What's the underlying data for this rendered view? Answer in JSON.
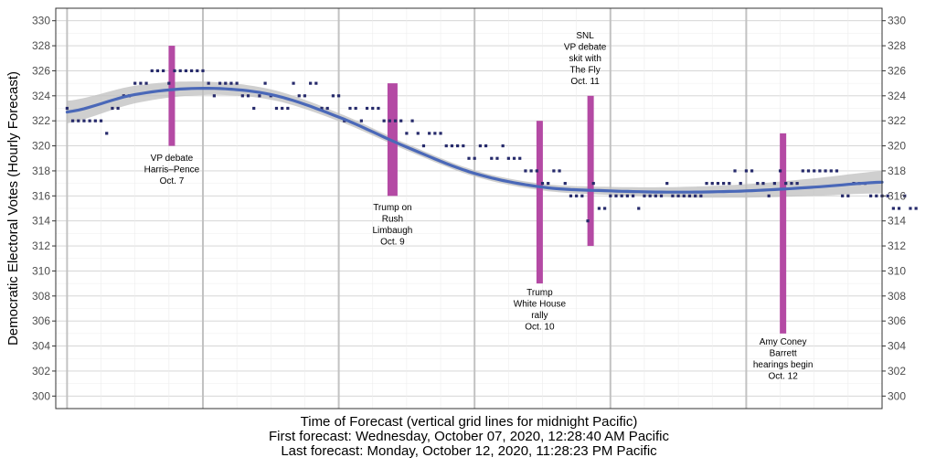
{
  "chart_data": {
    "type": "scatter",
    "ylabel": "Democratic Electoral Votes (Hourly Forecast)",
    "xlabel_lines": [
      "Time of Forecast (vertical grid lines for midnight Pacific)",
      "First forecast: Wednesday, October 07, 2020, 12:28:40 AM Pacific",
      "Last forecast: Monday, October 12, 2020, 11:28:23 PM Pacific"
    ],
    "x_unit": "hours since first forecast",
    "xlim": [
      -2,
      144
    ],
    "ylim": [
      299,
      331
    ],
    "y_ticks": [
      300,
      302,
      304,
      306,
      308,
      310,
      312,
      314,
      316,
      318,
      320,
      322,
      324,
      326,
      328,
      330
    ],
    "midnight_gridlines": [
      0,
      24,
      48,
      72,
      96,
      120
    ],
    "hourly_forecasts": [
      323,
      322,
      322,
      322,
      322,
      322,
      322,
      321,
      323,
      323,
      324,
      324,
      325,
      325,
      325,
      326,
      326,
      326,
      325,
      326,
      326,
      326,
      326,
      326,
      326,
      325,
      324,
      325,
      325,
      325,
      325,
      324,
      324,
      323,
      324,
      325,
      324,
      323,
      323,
      323,
      325,
      324,
      324,
      325,
      325,
      323,
      323,
      324,
      324,
      322,
      323,
      323,
      322,
      323,
      323,
      323,
      322,
      322,
      322,
      322,
      321,
      322,
      321,
      320,
      321,
      321,
      321,
      320,
      320,
      320,
      320,
      319,
      319,
      320,
      320,
      319,
      319,
      320,
      319,
      319,
      319,
      318,
      318,
      318,
      317,
      317,
      318,
      318,
      317,
      316,
      316,
      316,
      314,
      317,
      315,
      315,
      316,
      316,
      316,
      316,
      316,
      315,
      316,
      316,
      316,
      316,
      317,
      316,
      316,
      316,
      316,
      316,
      316,
      317,
      317,
      317,
      317,
      317,
      318,
      317,
      318,
      318,
      317,
      317,
      316,
      317,
      318,
      317,
      317,
      317,
      318,
      318,
      318,
      318,
      318,
      318,
      318,
      316,
      316,
      317,
      317,
      317,
      316,
      316,
      316,
      316,
      315,
      315,
      316,
      315,
      315
    ],
    "trend": {
      "x": [
        0,
        12,
        24,
        36,
        48,
        60,
        72,
        84,
        96,
        108,
        120,
        132,
        144
      ],
      "y": [
        322.7,
        324.1,
        324.6,
        324.1,
        322.3,
        319.9,
        317.8,
        316.7,
        316.4,
        316.3,
        316.4,
        316.7,
        317.1
      ]
    },
    "events": [
      {
        "x": 18.5,
        "y_low": 320,
        "y_high": 328,
        "label": [
          "VP debate",
          "Harris–Pence",
          "Oct. 7"
        ]
      },
      {
        "x": 57.5,
        "y_low": 316,
        "y_high": 325,
        "label": [
          "Trump on",
          "Rush",
          "Limbaugh",
          "Oct. 9"
        ]
      },
      {
        "x": 83.5,
        "y_low": 309,
        "y_high": 322,
        "label": [
          "Trump",
          "White House",
          "rally",
          "Oct. 10"
        ]
      },
      {
        "x": 92.5,
        "y_low": 312,
        "y_high": 324,
        "label": [
          "SNL",
          "VP debate",
          "skit with",
          "The Fly",
          "Oct. 11"
        ]
      },
      {
        "x": 126.5,
        "y_low": 305,
        "y_high": 321,
        "label": [
          "Amy Coney",
          "Barrett",
          "hearings begin",
          "Oct. 12"
        ]
      }
    ],
    "colors": {
      "points": "#262a6b",
      "trend": "#4a68b8",
      "ribbon": "#bfbfbf",
      "event_bar": "#b44aa4",
      "grid_major": "#d0d0d0",
      "grid_minor": "#ededed",
      "midnight": "#c2c2c2"
    },
    "grid": true,
    "legend": "none"
  }
}
